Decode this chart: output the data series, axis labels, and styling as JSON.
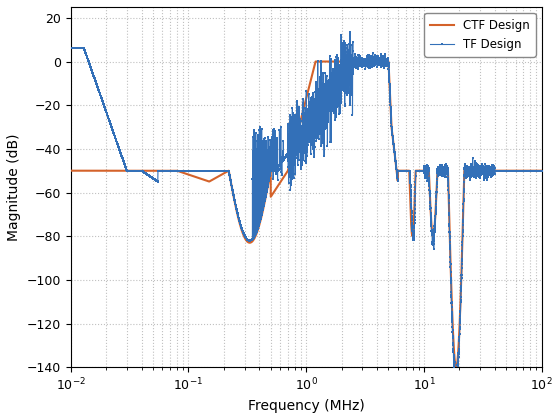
{
  "xlabel": "Frequency (MHz)",
  "ylabel": "Magnitude (dB)",
  "xlim_log": [
    -2,
    2
  ],
  "ylim": [
    -140,
    25
  ],
  "yticks": [
    20,
    0,
    -20,
    -40,
    -60,
    -80,
    -100,
    -120,
    -140
  ],
  "legend": [
    "TF Design",
    "CTF Design"
  ],
  "tf_color": "#3370b8",
  "ctf_color": "#d4622a",
  "background_color": "#ffffff",
  "grid_color": "#c0c0c0",
  "grid_minor_color": "#d8d8d8"
}
